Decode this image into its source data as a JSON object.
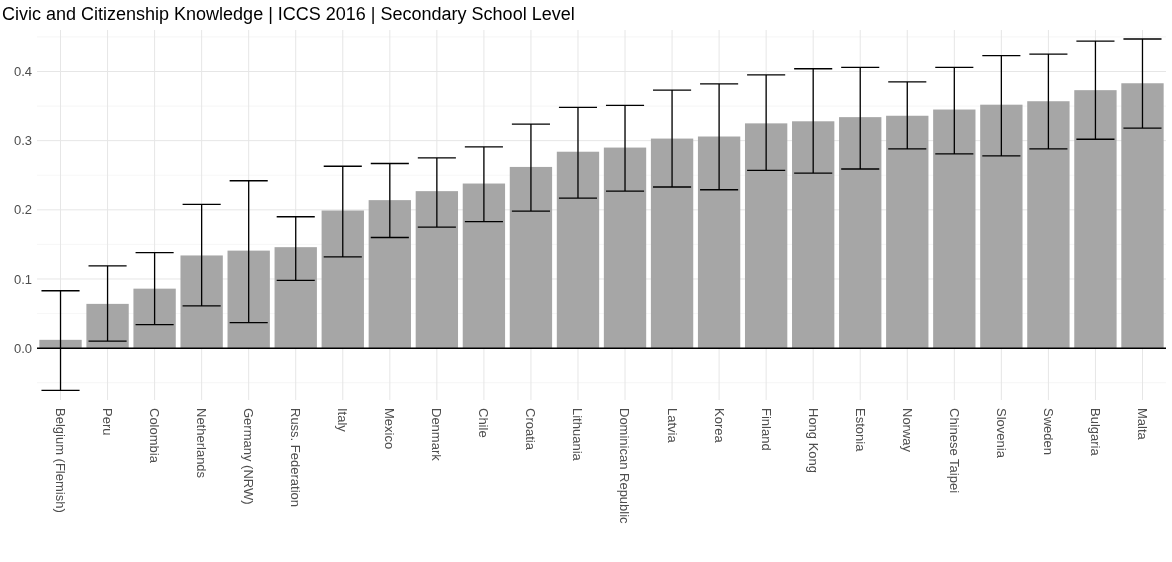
{
  "chart_data": {
    "type": "bar",
    "title": "Civic and Citizenship Knowledge | ICCS 2016 | Secondary School Level",
    "categories": [
      "Belgium (Flemish)",
      "Peru",
      "Colombia",
      "Netherlands",
      "Germany (NRW)",
      "Russ. Federation",
      "Italy",
      "Mexico",
      "Denmark",
      "Chile",
      "Croatia",
      "Lithuania",
      "Dominican Republic",
      "Latvia",
      "Korea",
      "Finland",
      "Hong Kong",
      "Estonia",
      "Norway",
      "Chinese Taipei",
      "Slovenia",
      "Sweden",
      "Bulgaria",
      "Malta"
    ],
    "values": [
      0.012,
      0.064,
      0.086,
      0.134,
      0.141,
      0.146,
      0.199,
      0.214,
      0.227,
      0.238,
      0.262,
      0.284,
      0.29,
      0.303,
      0.306,
      0.325,
      0.328,
      0.334,
      0.336,
      0.345,
      0.352,
      0.357,
      0.373,
      0.383
    ],
    "errors": [
      [
        -0.061,
        0.083
      ],
      [
        0.01,
        0.119
      ],
      [
        0.034,
        0.138
      ],
      [
        0.061,
        0.208
      ],
      [
        0.037,
        0.242
      ],
      [
        0.098,
        0.19
      ],
      [
        0.132,
        0.263
      ],
      [
        0.16,
        0.267
      ],
      [
        0.175,
        0.275
      ],
      [
        0.183,
        0.291
      ],
      [
        0.198,
        0.324
      ],
      [
        0.217,
        0.348
      ],
      [
        0.227,
        0.351
      ],
      [
        0.233,
        0.373
      ],
      [
        0.229,
        0.382
      ],
      [
        0.257,
        0.395
      ],
      [
        0.253,
        0.404
      ],
      [
        0.259,
        0.406
      ],
      [
        0.288,
        0.385
      ],
      [
        0.281,
        0.406
      ],
      [
        0.278,
        0.423
      ],
      [
        0.288,
        0.425
      ],
      [
        0.302,
        0.444
      ],
      [
        0.318,
        0.447
      ]
    ],
    "color": "#a6a6a6",
    "ylim": [
      -0.075,
      0.46
    ],
    "yticks": [
      {
        "value": 0,
        "label": "0.0"
      },
      {
        "value": 0.1,
        "label": "0.1"
      },
      {
        "value": 0.2,
        "label": "0.2"
      },
      {
        "value": 0.3,
        "label": "0.3"
      },
      {
        "value": 0.4,
        "label": "0.4"
      }
    ],
    "ref_lines": [
      {
        "axis": "y",
        "value": 0,
        "color": "#000000"
      }
    ],
    "grid": true
  }
}
